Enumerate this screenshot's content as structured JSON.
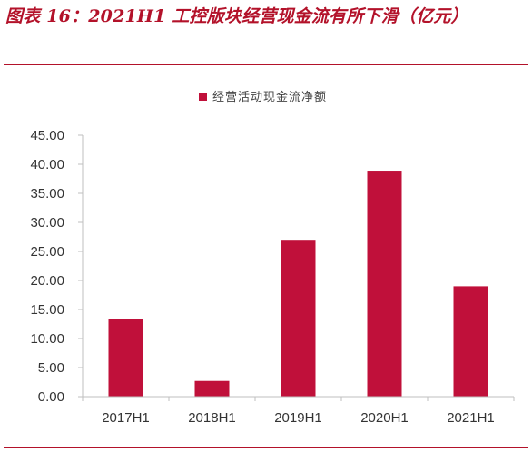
{
  "figure": {
    "title": "图表 16：2021H1 工控版块经营现金流有所下滑（亿元）"
  },
  "colors": {
    "accent": "#b3122a",
    "bar": "#c0103a",
    "axis": "#bfbfbf"
  },
  "chart_data": {
    "type": "bar",
    "categories": [
      "2017H1",
      "2018H1",
      "2019H1",
      "2020H1",
      "2021H1"
    ],
    "series": [
      {
        "name": "经营活动现金流净额",
        "values": [
          13.3,
          2.7,
          27.0,
          38.9,
          19.0
        ]
      }
    ],
    "ylim": [
      0,
      45
    ],
    "yticks": [
      "0.00",
      "5.00",
      "10.00",
      "15.00",
      "20.00",
      "25.00",
      "30.00",
      "35.00",
      "40.00",
      "45.00"
    ],
    "ytick_values": [
      0,
      5,
      10,
      15,
      20,
      25,
      30,
      35,
      40,
      45
    ],
    "legend_position": "top-center",
    "grid": false
  }
}
